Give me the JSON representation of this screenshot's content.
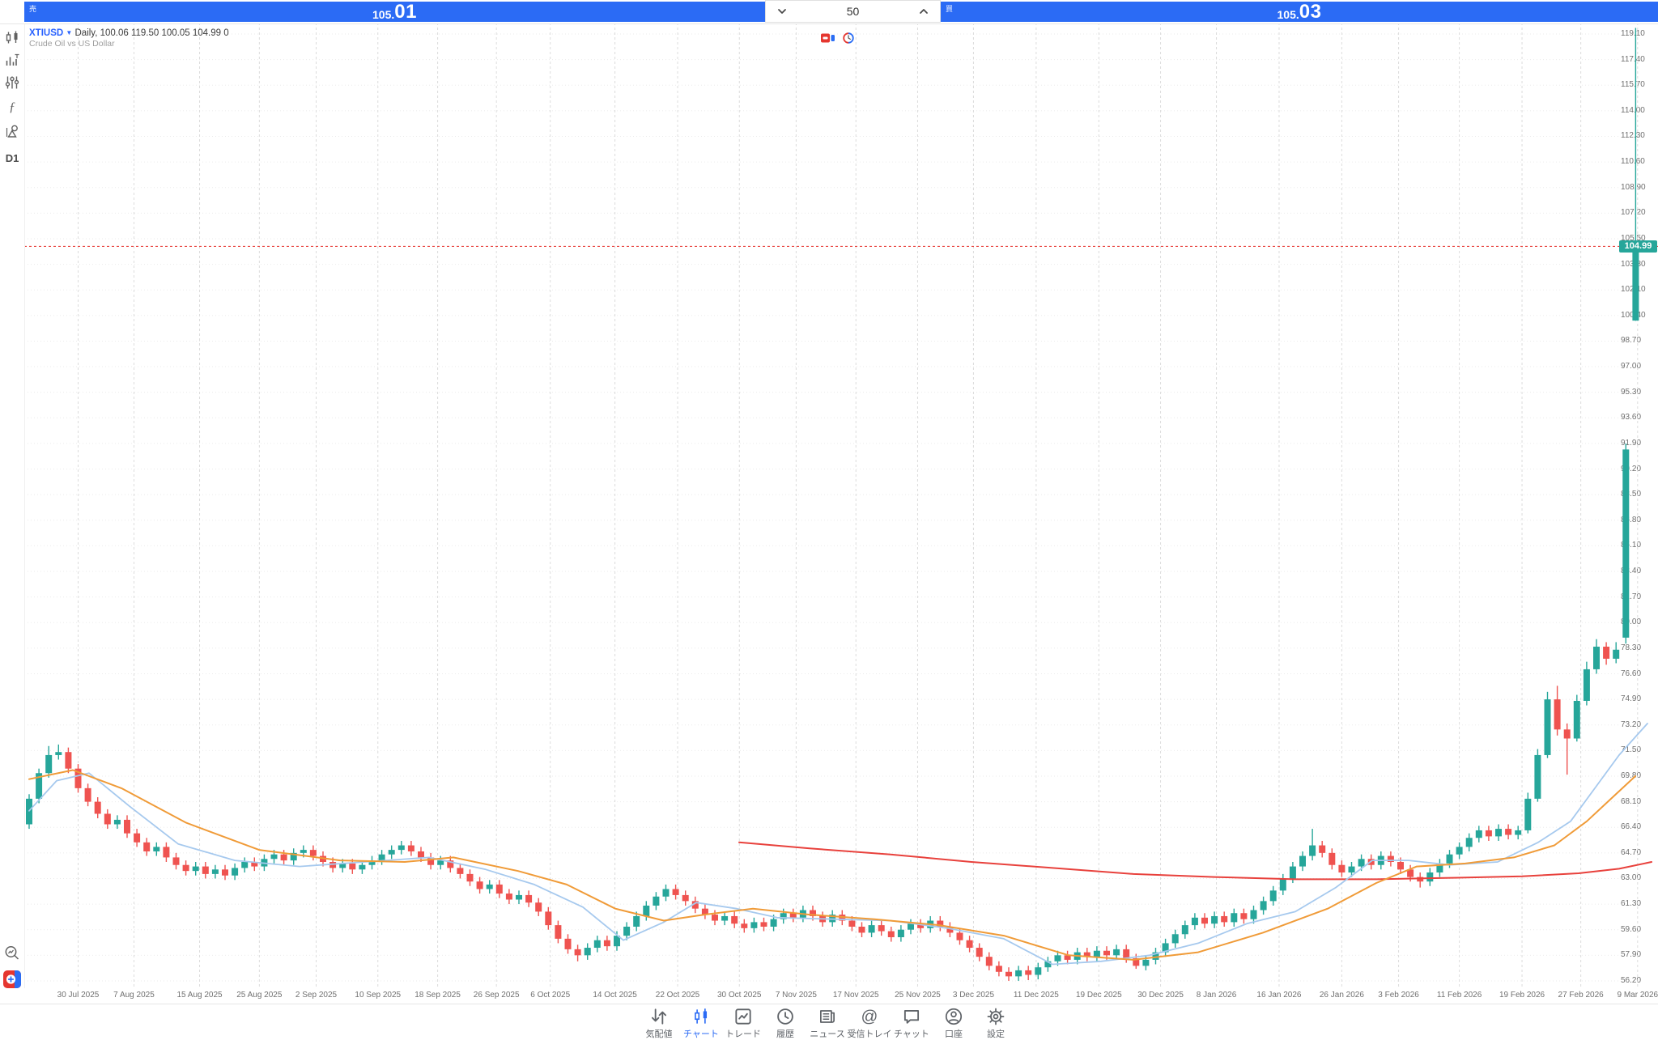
{
  "top_bar": {
    "sell_label": "売",
    "sell_price_int": "105.",
    "sell_price_frac": "01",
    "volume": "50",
    "buy_label": "買",
    "buy_price_int": "105.",
    "buy_price_frac": "03"
  },
  "header": {
    "symbol": "XTIUSD",
    "summary": "Daily, 100.06 119.50 100.05 104.99 0",
    "description": "Crude Oil vs US Dollar"
  },
  "left_toolbar": {
    "timeframe": "D1"
  },
  "nav": {
    "items": [
      {
        "label": "気配値",
        "active": false
      },
      {
        "label": "チャート",
        "active": true
      },
      {
        "label": "トレード",
        "active": false
      },
      {
        "label": "履歴",
        "active": false
      },
      {
        "label": "ニュース",
        "active": false
      },
      {
        "label": "受信トレイ",
        "active": false
      },
      {
        "label": "チャット",
        "active": false
      },
      {
        "label": "口座",
        "active": false
      },
      {
        "label": "設定",
        "active": false
      }
    ]
  },
  "colors": {
    "bull": "#26a69a",
    "bear": "#ef5350",
    "ma_fast": "#a6c9ee",
    "ma_slow": "#f09b38",
    "ma_long": "#e8413c",
    "price_line": "#e8413c",
    "accent_blue": "#2b6bf5"
  },
  "chart_data": {
    "type": "candlestick",
    "symbol": "XTIUSD",
    "timeframe": "Daily",
    "current_price": 104.99,
    "current_price_label": "104.99",
    "last_bar": {
      "open": 100.06,
      "high": 119.5,
      "low": 100.05,
      "close": 104.99,
      "volume": 0
    },
    "y_axis": {
      "top_price": 119.1,
      "bottom_price": 56.2,
      "step": 1.7,
      "labels": [
        119.1,
        117.4,
        115.7,
        114.0,
        112.3,
        110.6,
        108.9,
        107.2,
        105.5,
        103.8,
        102.1,
        100.4,
        98.7,
        97.0,
        95.3,
        93.6,
        91.9,
        90.2,
        88.5,
        86.8,
        85.1,
        83.4,
        81.7,
        80.0,
        78.3,
        76.6,
        74.9,
        73.2,
        71.5,
        69.8,
        68.1,
        66.4,
        64.7,
        63.0,
        61.3,
        59.6,
        57.9,
        56.2
      ]
    },
    "x_ticks": [
      {
        "i": 5.0,
        "label": "30 Jul 2025"
      },
      {
        "i": 10.7,
        "label": "7 Aug 2025"
      },
      {
        "i": 17.4,
        "label": "15 Aug 2025"
      },
      {
        "i": 23.5,
        "label": "25 Aug 2025"
      },
      {
        "i": 29.3,
        "label": "2 Sep 2025"
      },
      {
        "i": 35.6,
        "label": "10 Sep 2025"
      },
      {
        "i": 41.7,
        "label": "18 Sep 2025"
      },
      {
        "i": 47.7,
        "label": "26 Sep 2025"
      },
      {
        "i": 53.2,
        "label": "6 Oct 2025"
      },
      {
        "i": 59.8,
        "label": "14 Oct 2025"
      },
      {
        "i": 66.2,
        "label": "22 Oct 2025"
      },
      {
        "i": 72.5,
        "label": "30 Oct 2025"
      },
      {
        "i": 78.3,
        "label": "7 Nov 2025"
      },
      {
        "i": 84.4,
        "label": "17 Nov 2025"
      },
      {
        "i": 90.7,
        "label": "25 Nov 2025"
      },
      {
        "i": 96.4,
        "label": "3 Dec 2025"
      },
      {
        "i": 102.8,
        "label": "11 Dec 2025"
      },
      {
        "i": 109.2,
        "label": "19 Dec 2025"
      },
      {
        "i": 115.5,
        "label": "30 Dec 2025"
      },
      {
        "i": 121.2,
        "label": "8 Jan 2026"
      },
      {
        "i": 127.6,
        "label": "16 Jan 2026"
      },
      {
        "i": 134.0,
        "label": "26 Jan 2026"
      },
      {
        "i": 139.8,
        "label": "3 Feb 2026"
      },
      {
        "i": 146.0,
        "label": "11 Feb 2026"
      },
      {
        "i": 152.4,
        "label": "19 Feb 2026"
      },
      {
        "i": 158.4,
        "label": "27 Feb 2026"
      },
      {
        "i": 164.2,
        "label": "9 Mar 2026"
      }
    ],
    "candles": [
      [
        66.6,
        68.6,
        66.3,
        68.3
      ],
      [
        68.3,
        70.3,
        68,
        70
      ],
      [
        70,
        71.8,
        69.7,
        71.2
      ],
      [
        71.2,
        71.9,
        70.9,
        71.4
      ],
      [
        71.4,
        71.7,
        70,
        70.3
      ],
      [
        70.3,
        70.6,
        68.7,
        69
      ],
      [
        69,
        69.3,
        67.8,
        68.1
      ],
      [
        68.1,
        68.4,
        67,
        67.3
      ],
      [
        67.3,
        67.6,
        66.3,
        66.6
      ],
      [
        66.6,
        67.2,
        66.3,
        66.9
      ],
      [
        66.9,
        67.2,
        65.7,
        66
      ],
      [
        66,
        66.3,
        65.1,
        65.4
      ],
      [
        65.4,
        65.7,
        64.5,
        64.8
      ],
      [
        64.8,
        65.4,
        64.5,
        65.1
      ],
      [
        65.1,
        65.4,
        64.1,
        64.4
      ],
      [
        64.4,
        64.7,
        63.6,
        63.9
      ],
      [
        63.9,
        64.2,
        63.2,
        63.5
      ],
      [
        63.5,
        64.1,
        63.2,
        63.8
      ],
      [
        63.8,
        64.1,
        63,
        63.3
      ],
      [
        63.3,
        63.9,
        63,
        63.6
      ],
      [
        63.6,
        63.9,
        62.9,
        63.2
      ],
      [
        63.2,
        64,
        62.9,
        63.7
      ],
      [
        63.7,
        64.4,
        63.4,
        64.1
      ],
      [
        64.1,
        64.4,
        63.5,
        63.8
      ],
      [
        63.8,
        64.6,
        63.5,
        64.3
      ],
      [
        64.3,
        64.9,
        64,
        64.6
      ],
      [
        64.6,
        64.9,
        63.9,
        64.2
      ],
      [
        64.2,
        65,
        63.9,
        64.7
      ],
      [
        64.7,
        65.2,
        64.4,
        64.9
      ],
      [
        64.9,
        65.2,
        64.2,
        64.5
      ],
      [
        64.5,
        64.8,
        63.8,
        64.1
      ],
      [
        64.1,
        64.4,
        63.4,
        63.7
      ],
      [
        63.7,
        64.3,
        63.4,
        64
      ],
      [
        64,
        64.3,
        63.3,
        63.6
      ],
      [
        63.6,
        64.2,
        63.3,
        63.9
      ],
      [
        63.9,
        64.5,
        63.6,
        64.2
      ],
      [
        64.2,
        64.9,
        63.9,
        64.6
      ],
      [
        64.6,
        65.2,
        64.3,
        64.9
      ],
      [
        64.9,
        65.5,
        64.6,
        65.2
      ],
      [
        65.2,
        65.5,
        64.5,
        64.8
      ],
      [
        64.8,
        65.1,
        64.1,
        64.4
      ],
      [
        64.4,
        64.7,
        63.6,
        63.9
      ],
      [
        63.9,
        64.5,
        63.6,
        64.2
      ],
      [
        64.2,
        64.5,
        63.4,
        63.7
      ],
      [
        63.7,
        64,
        63,
        63.3
      ],
      [
        63.3,
        63.6,
        62.5,
        62.8
      ],
      [
        62.8,
        63.1,
        62,
        62.3
      ],
      [
        62.3,
        62.9,
        62,
        62.6
      ],
      [
        62.6,
        62.9,
        61.7,
        62
      ],
      [
        62,
        62.3,
        61.3,
        61.6
      ],
      [
        61.6,
        62.2,
        61.3,
        61.9
      ],
      [
        61.9,
        62.2,
        61.1,
        61.4
      ],
      [
        61.4,
        61.7,
        60.5,
        60.8
      ],
      [
        60.8,
        61.1,
        59.6,
        59.9
      ],
      [
        59.9,
        60.2,
        58.7,
        59
      ],
      [
        59,
        59.3,
        58,
        58.3
      ],
      [
        58.3,
        58.6,
        57.5,
        57.9
      ],
      [
        57.9,
        58.7,
        57.6,
        58.4
      ],
      [
        58.4,
        59.2,
        58.1,
        58.9
      ],
      [
        58.9,
        59.2,
        58.2,
        58.5
      ],
      [
        58.5,
        59.5,
        58.2,
        59.2
      ],
      [
        59.2,
        60.1,
        58.9,
        59.8
      ],
      [
        59.8,
        60.8,
        59.5,
        60.5
      ],
      [
        60.5,
        61.5,
        60.2,
        61.2
      ],
      [
        61.2,
        62.1,
        60.9,
        61.8
      ],
      [
        61.8,
        62.6,
        61.5,
        62.3
      ],
      [
        62.3,
        62.6,
        61.6,
        61.9
      ],
      [
        61.9,
        62.2,
        61.2,
        61.5
      ],
      [
        61.5,
        61.8,
        60.7,
        61
      ],
      [
        61,
        61.3,
        60.3,
        60.6
      ],
      [
        60.6,
        60.9,
        59.9,
        60.2
      ],
      [
        60.2,
        60.8,
        59.9,
        60.5
      ],
      [
        60.5,
        60.8,
        59.7,
        60
      ],
      [
        60,
        60.3,
        59.4,
        59.7
      ],
      [
        59.7,
        60.4,
        59.4,
        60.1
      ],
      [
        60.1,
        60.4,
        59.5,
        59.8
      ],
      [
        59.8,
        60.6,
        59.5,
        60.3
      ],
      [
        60.3,
        61,
        60,
        60.7
      ],
      [
        60.7,
        61,
        60.1,
        60.4
      ],
      [
        60.4,
        61.2,
        60.1,
        60.9
      ],
      [
        60.9,
        61.2,
        60.2,
        60.5
      ],
      [
        60.5,
        60.8,
        59.8,
        60.1
      ],
      [
        60.1,
        60.9,
        59.8,
        60.6
      ],
      [
        60.6,
        60.9,
        59.9,
        60.2
      ],
      [
        60.2,
        60.5,
        59.5,
        59.8
      ],
      [
        59.8,
        60.1,
        59.1,
        59.4
      ],
      [
        59.4,
        60.2,
        59.1,
        59.9
      ],
      [
        59.9,
        60.2,
        59.2,
        59.5
      ],
      [
        59.5,
        59.8,
        58.8,
        59.1
      ],
      [
        59.1,
        59.9,
        58.8,
        59.6
      ],
      [
        59.6,
        60.3,
        59.3,
        60
      ],
      [
        60,
        60.3,
        59.4,
        59.7
      ],
      [
        59.7,
        60.5,
        59.4,
        60.2
      ],
      [
        60.2,
        60.5,
        59.5,
        59.8
      ],
      [
        59.8,
        60.1,
        59.1,
        59.4
      ],
      [
        59.4,
        59.7,
        58.6,
        58.9
      ],
      [
        58.9,
        59.2,
        58.1,
        58.4
      ],
      [
        58.4,
        58.7,
        57.5,
        57.8
      ],
      [
        57.8,
        58.1,
        56.9,
        57.2
      ],
      [
        57.2,
        57.5,
        56.5,
        56.8
      ],
      [
        56.8,
        57.1,
        56.2,
        56.5
      ],
      [
        56.5,
        57.2,
        56.2,
        56.9
      ],
      [
        56.9,
        57.2,
        56.25,
        56.6
      ],
      [
        56.6,
        57.4,
        56.3,
        57.1
      ],
      [
        57.1,
        57.8,
        56.8,
        57.5
      ],
      [
        57.5,
        58.2,
        57.2,
        57.9
      ],
      [
        57.9,
        58.2,
        57.3,
        57.6
      ],
      [
        57.6,
        58.4,
        57.3,
        58.1
      ],
      [
        58.1,
        58.4,
        57.5,
        57.8
      ],
      [
        57.8,
        58.5,
        57.5,
        58.2
      ],
      [
        58.2,
        58.5,
        57.6,
        57.9
      ],
      [
        57.9,
        58.6,
        57.6,
        58.3
      ],
      [
        58.3,
        58.6,
        57.4,
        57.7
      ],
      [
        57.7,
        58,
        57,
        57.2
      ],
      [
        57.2,
        57.9,
        56.9,
        57.6
      ],
      [
        57.6,
        58.4,
        57.3,
        58.1
      ],
      [
        58.1,
        59,
        57.8,
        58.7
      ],
      [
        58.7,
        59.6,
        58.4,
        59.3
      ],
      [
        59.3,
        60.2,
        59,
        59.9
      ],
      [
        59.9,
        60.7,
        59.6,
        60.4
      ],
      [
        60.4,
        60.7,
        59.7,
        60
      ],
      [
        60,
        60.8,
        59.7,
        60.5
      ],
      [
        60.5,
        60.8,
        59.8,
        60.1
      ],
      [
        60.1,
        61,
        59.8,
        60.7
      ],
      [
        60.7,
        61,
        60,
        60.3
      ],
      [
        60.3,
        61.2,
        60,
        60.9
      ],
      [
        60.9,
        61.8,
        60.6,
        61.5
      ],
      [
        61.5,
        62.5,
        61.2,
        62.2
      ],
      [
        62.2,
        63.3,
        61.9,
        63
      ],
      [
        63,
        64.1,
        62.7,
        63.8
      ],
      [
        63.8,
        64.8,
        63.5,
        64.5
      ],
      [
        64.5,
        66.3,
        64.2,
        65.2
      ],
      [
        65.2,
        65.5,
        64.4,
        64.7
      ],
      [
        64.7,
        65,
        63.6,
        63.9
      ],
      [
        63.9,
        64.2,
        63.1,
        63.4
      ],
      [
        63.4,
        64.1,
        63.1,
        63.8
      ],
      [
        63.8,
        64.6,
        63.5,
        64.3
      ],
      [
        64.3,
        64.6,
        63.6,
        63.9
      ],
      [
        63.9,
        64.8,
        63.6,
        64.5
      ],
      [
        64.5,
        64.8,
        63.8,
        64.1
      ],
      [
        64.1,
        64.4,
        63.3,
        63.6
      ],
      [
        63.6,
        63.9,
        62.8,
        63.1
      ],
      [
        63.1,
        63.4,
        62.4,
        62.8
      ],
      [
        62.8,
        63.7,
        62.5,
        63.4
      ],
      [
        63.4,
        64.3,
        63.1,
        64
      ],
      [
        64,
        64.9,
        63.7,
        64.6
      ],
      [
        64.6,
        65.4,
        64.3,
        65.1
      ],
      [
        65.1,
        66,
        64.8,
        65.7
      ],
      [
        65.7,
        66.5,
        65.4,
        66.2
      ],
      [
        66.2,
        66.5,
        65.5,
        65.8
      ],
      [
        65.8,
        66.6,
        65.5,
        66.3
      ],
      [
        66.3,
        66.6,
        65.6,
        65.9
      ],
      [
        65.9,
        66.5,
        65.6,
        66.2
      ],
      [
        66.2,
        68.7,
        66,
        68.3
      ],
      [
        68.3,
        71.6,
        68.1,
        71.2
      ],
      [
        71.2,
        75.4,
        71,
        74.9
      ],
      [
        74.9,
        75.8,
        72.5,
        72.9
      ],
      [
        72.9,
        73.3,
        69.9,
        72.3
      ],
      [
        72.3,
        75.2,
        72.1,
        74.8
      ],
      [
        74.8,
        77.4,
        74.5,
        76.9
      ],
      [
        76.9,
        78.9,
        76.6,
        78.4
      ],
      [
        78.4,
        78.7,
        77.2,
        77.6
      ],
      [
        77.6,
        78.7,
        77.3,
        78.2
      ],
      [
        79,
        91.9,
        78.6,
        91.5
      ],
      [
        100.06,
        119.5,
        100.05,
        104.99
      ]
    ],
    "ma_slow_orange": [
      [
        36,
        69.6
      ],
      [
        90,
        70.2
      ],
      [
        150,
        69.0
      ],
      [
        230,
        66.7
      ],
      [
        320,
        64.9
      ],
      [
        420,
        64.2
      ],
      [
        500,
        64.1
      ],
      [
        560,
        64.4
      ],
      [
        640,
        63.5
      ],
      [
        700,
        62.6
      ],
      [
        760,
        61.0
      ],
      [
        820,
        60.2
      ],
      [
        870,
        60.6
      ],
      [
        930,
        61.0
      ],
      [
        1000,
        60.6
      ],
      [
        1080,
        60.3
      ],
      [
        1160,
        59.9
      ],
      [
        1240,
        59.2
      ],
      [
        1320,
        57.9
      ],
      [
        1400,
        57.6
      ],
      [
        1480,
        58.1
      ],
      [
        1560,
        59.4
      ],
      [
        1640,
        61.0
      ],
      [
        1700,
        62.7
      ],
      [
        1750,
        63.8
      ],
      [
        1810,
        64.0
      ],
      [
        1870,
        64.4
      ],
      [
        1920,
        65.2
      ],
      [
        1960,
        66.8
      ],
      [
        1990,
        68.3
      ],
      [
        2020,
        69.8
      ]
    ],
    "ma_fast_blue": [
      [
        36,
        67.5
      ],
      [
        70,
        69.5
      ],
      [
        110,
        70.0
      ],
      [
        160,
        67.8
      ],
      [
        220,
        65.3
      ],
      [
        290,
        64.2
      ],
      [
        370,
        63.8
      ],
      [
        450,
        64.1
      ],
      [
        530,
        64.4
      ],
      [
        600,
        63.6
      ],
      [
        660,
        62.6
      ],
      [
        720,
        61.1
      ],
      [
        770,
        58.9
      ],
      [
        820,
        60.1
      ],
      [
        860,
        61.4
      ],
      [
        910,
        61.0
      ],
      [
        960,
        60.4
      ],
      [
        1030,
        60.3
      ],
      [
        1100,
        60.2
      ],
      [
        1170,
        59.7
      ],
      [
        1240,
        59.0
      ],
      [
        1300,
        57.3
      ],
      [
        1360,
        57.5
      ],
      [
        1420,
        57.9
      ],
      [
        1480,
        58.7
      ],
      [
        1540,
        60.0
      ],
      [
        1600,
        60.8
      ],
      [
        1650,
        62.4
      ],
      [
        1695,
        64.2
      ],
      [
        1740,
        64.2
      ],
      [
        1790,
        63.9
      ],
      [
        1850,
        64.1
      ],
      [
        1900,
        65.4
      ],
      [
        1940,
        66.8
      ],
      [
        1970,
        69.0
      ],
      [
        2000,
        71.2
      ],
      [
        2035,
        73.3
      ]
    ],
    "ma_long_red": [
      [
        913,
        65.4
      ],
      [
        1000,
        65.0
      ],
      [
        1100,
        64.6
      ],
      [
        1200,
        64.1
      ],
      [
        1300,
        63.7
      ],
      [
        1400,
        63.3
      ],
      [
        1500,
        63.1
      ],
      [
        1600,
        62.95
      ],
      [
        1700,
        62.95
      ],
      [
        1800,
        63.05
      ],
      [
        1880,
        63.15
      ],
      [
        1950,
        63.35
      ],
      [
        2000,
        63.65
      ],
      [
        2040,
        64.1
      ]
    ]
  }
}
